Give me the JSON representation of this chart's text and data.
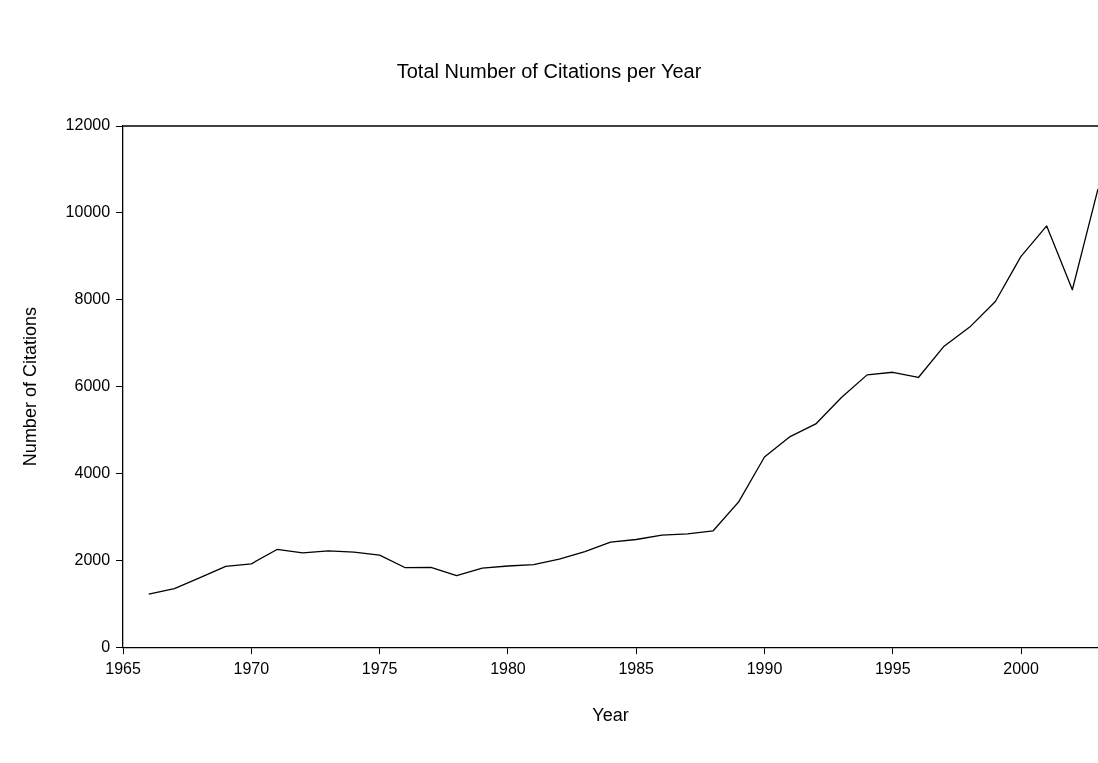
{
  "chart_data": {
    "type": "line",
    "title": "Total Number of Citations per Year",
    "xlabel": "Year",
    "ylabel": "Number of Citations",
    "x": [
      1966,
      1967,
      1968,
      1969,
      1970,
      1971,
      1972,
      1973,
      1974,
      1975,
      1976,
      1977,
      1978,
      1979,
      1980,
      1981,
      1982,
      1983,
      1984,
      1985,
      1986,
      1987,
      1988,
      1989,
      1990,
      1991,
      1992,
      1993,
      1994,
      1995,
      1996,
      1997,
      1998,
      1999,
      2000,
      2001,
      2002,
      2003
    ],
    "series": [
      {
        "color": "#000000",
        "values": [
          1220,
          1350,
          1600,
          1860,
          1920,
          2250,
          2170,
          2220,
          2190,
          2120,
          1830,
          1840,
          1650,
          1820,
          1870,
          1900,
          2030,
          2200,
          2420,
          2480,
          2580,
          2610,
          2680,
          3350,
          4380,
          4850,
          5140,
          5750,
          6270,
          6330,
          6210,
          6930,
          7370,
          7960,
          9000,
          9700,
          8230,
          10550
        ]
      }
    ],
    "xlim": [
      1965,
      2003
    ],
    "xticks": [
      1965,
      1970,
      1975,
      1980,
      1985,
      1990,
      1995,
      2000
    ],
    "ylim": [
      0,
      12000
    ],
    "yticks": [
      0,
      2000,
      4000,
      6000,
      8000,
      10000,
      12000
    ],
    "grid": false,
    "legend": false,
    "marker": "none",
    "line_style": "solid"
  }
}
